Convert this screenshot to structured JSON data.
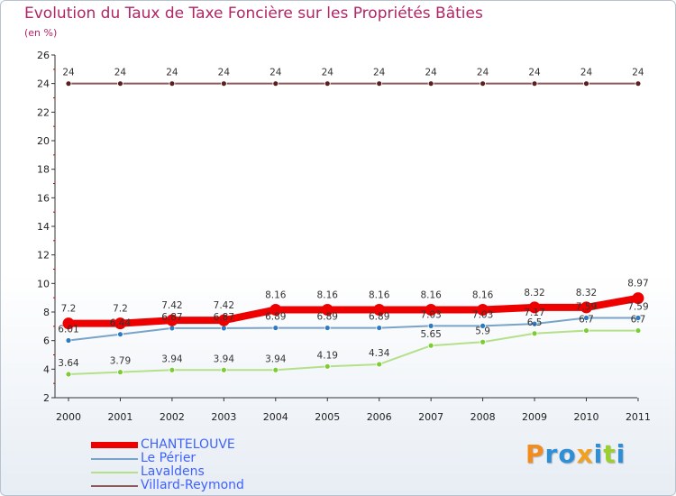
{
  "chart_data": {
    "type": "line",
    "title": "Evolution du Taux de Taxe Foncière sur les Propriétés Bâties",
    "unit_label": "(en %)",
    "xlabel": "",
    "ylabel": "",
    "ylim": [
      2,
      26
    ],
    "y_ticks": [
      "2",
      "4",
      "6",
      "8",
      "10",
      "12",
      "14",
      "16",
      "18",
      "20",
      "22",
      "24",
      "26"
    ],
    "x": [
      "2000",
      "2001",
      "2002",
      "2003",
      "2004",
      "2005",
      "2006",
      "2007",
      "2008",
      "2009",
      "2010",
      "2011"
    ],
    "grid": false,
    "legend_position": "bottom-left",
    "series": [
      {
        "name": "Villard-Reymond",
        "color": "#8b5a5a",
        "marker_color": "#5c1f1f",
        "values": [
          24,
          24,
          24,
          24,
          24,
          24,
          24,
          24,
          24,
          24,
          24,
          24
        ],
        "labels": [
          "24",
          "24",
          "24",
          "24",
          "24",
          "24",
          "24",
          "24",
          "24",
          "24",
          "24",
          "24"
        ]
      },
      {
        "name": "Lavaldens",
        "color": "#b5e08a",
        "marker_color": "#7ccd33",
        "values": [
          3.64,
          3.79,
          3.94,
          3.94,
          3.94,
          4.19,
          4.34,
          5.65,
          5.9,
          6.5,
          6.7,
          6.7
        ],
        "labels": [
          "3.64",
          "3.79",
          "3.94",
          "3.94",
          "3.94",
          "4.19",
          "4.34",
          "5.65",
          "5.9",
          "6.5",
          "6.7",
          "6.7"
        ]
      },
      {
        "name": "Le Périer",
        "color": "#7aa3c9",
        "marker_color": "#2e7bc0",
        "values": [
          6.01,
          6.44,
          6.87,
          6.87,
          6.89,
          6.89,
          6.89,
          7.03,
          7.03,
          7.17,
          7.59,
          7.59
        ],
        "labels": [
          "6.01",
          "6.44",
          "6.87",
          "6.87",
          "6.89",
          "6.89",
          "6.89",
          "7.03",
          "7.03",
          "7.17",
          "7.59",
          "7.59"
        ]
      },
      {
        "name": "CHANTELOUVE",
        "color": "#ee0000",
        "marker_color": "#ee0000",
        "values": [
          7.2,
          7.2,
          7.42,
          7.42,
          8.16,
          8.16,
          8.16,
          8.16,
          8.16,
          8.32,
          8.32,
          8.97
        ],
        "labels": [
          "7.2",
          "7.2",
          "7.42",
          "7.42",
          "8.16",
          "8.16",
          "8.16",
          "8.16",
          "8.16",
          "8.32",
          "8.32",
          "8.97"
        ]
      }
    ],
    "legend": [
      {
        "name": "CHANTELOUVE",
        "color": "#ee0000",
        "text_color": "#3f62ff"
      },
      {
        "name": "Le Périer",
        "color": "#7aa3c9",
        "text_color": "#3f62ff"
      },
      {
        "name": "Lavaldens",
        "color": "#b5e08a",
        "text_color": "#3f62ff"
      },
      {
        "name": "Villard-Reymond",
        "color": "#8b5a5a",
        "text_color": "#3f62ff"
      }
    ]
  },
  "logo": {
    "letters": [
      "P",
      "r",
      "o",
      "x",
      "i",
      "t",
      "i"
    ],
    "colors": [
      "#f28c1e",
      "#2f8fd6",
      "#2f8fd6",
      "#f2a01e",
      "#2f8fd6",
      "#9bcf2e",
      "#2f8fd6"
    ]
  }
}
